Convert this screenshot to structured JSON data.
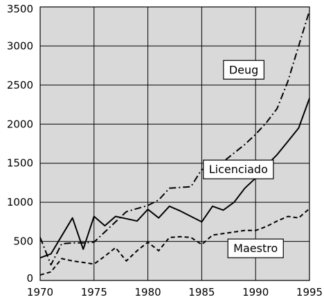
{
  "chart_data": {
    "type": "line",
    "title": "",
    "xlabel": "",
    "ylabel": "",
    "xlim": [
      1970,
      1995
    ],
    "ylim": [
      0,
      3500
    ],
    "x_ticks": [
      1970,
      1975,
      1980,
      1985,
      1990,
      1995
    ],
    "y_ticks": [
      0,
      500,
      1000,
      1500,
      2000,
      2500,
      3000,
      3500
    ],
    "x_tick_labels": [
      "1970",
      "1975",
      "1980",
      "1985",
      "1990",
      "1995"
    ],
    "y_tick_labels": [
      "0",
      "500",
      "1000",
      "1500",
      "2000",
      "2500",
      "3000",
      "3500"
    ],
    "grid": true,
    "legend": "inline labels",
    "background_color": "#d9d9d9",
    "series": [
      {
        "name": "Deug",
        "style": "dash-dot",
        "label_anchor": [
          1988.9,
          2700
        ],
        "x": [
          1970,
          1971,
          1972,
          1973,
          1974,
          1975,
          1976,
          1977,
          1978,
          1979,
          1980,
          1981,
          1982,
          1983,
          1984,
          1985,
          1986,
          1987,
          1988,
          1989,
          1990,
          1991,
          1992,
          1993,
          1994,
          1995
        ],
        "values": [
          550,
          200,
          470,
          480,
          480,
          490,
          620,
          750,
          880,
          920,
          960,
          1030,
          1180,
          1190,
          1200,
          1420,
          1420,
          1520,
          1630,
          1740,
          1870,
          2020,
          2200,
          2550,
          3000,
          3450
        ]
      },
      {
        "name": "Licenciado",
        "style": "solid",
        "label_anchor": [
          1988.4,
          1425
        ],
        "x": [
          1970,
          1971,
          1972,
          1973,
          1974,
          1975,
          1976,
          1977,
          1978,
          1979,
          1980,
          1981,
          1982,
          1983,
          1984,
          1985,
          1986,
          1987,
          1988,
          1989,
          1990,
          1991,
          1992,
          1993,
          1994,
          1995
        ],
        "values": [
          290,
          340,
          570,
          800,
          400,
          820,
          700,
          820,
          790,
          760,
          910,
          800,
          950,
          890,
          820,
          750,
          950,
          900,
          1000,
          1180,
          1310,
          1470,
          1610,
          1780,
          1950,
          2330
        ]
      },
      {
        "name": "Maestro",
        "style": "dashed",
        "label_anchor": [
          1990.0,
          415
        ],
        "x": [
          1970,
          1971,
          1972,
          1973,
          1974,
          1975,
          1976,
          1977,
          1978,
          1979,
          1980,
          1981,
          1982,
          1983,
          1984,
          1985,
          1986,
          1987,
          1988,
          1989,
          1990,
          1991,
          1992,
          1993,
          1994,
          1995
        ],
        "values": [
          70,
          110,
          280,
          250,
          230,
          210,
          310,
          420,
          250,
          380,
          490,
          380,
          550,
          560,
          550,
          460,
          580,
          600,
          620,
          640,
          640,
          690,
          760,
          820,
          800,
          920
        ]
      }
    ]
  }
}
